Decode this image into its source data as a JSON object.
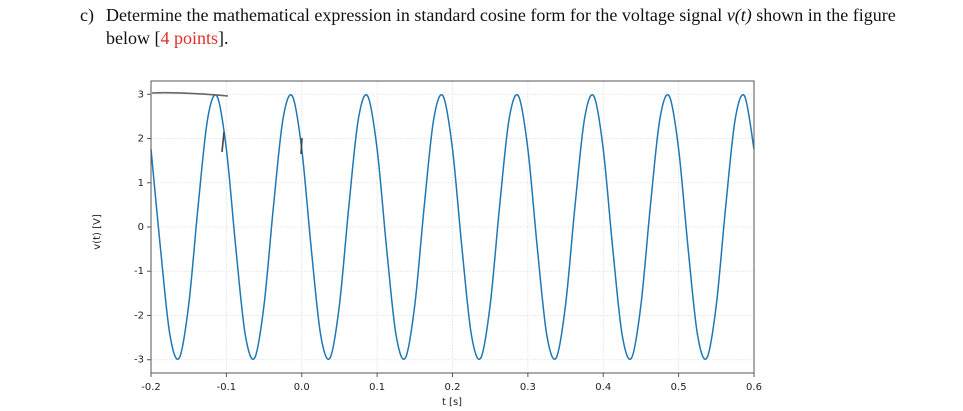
{
  "question": {
    "label": "c)",
    "text_before": "Determine the mathematical expression in standard cosine form for the voltage signal ",
    "math": "v(t)",
    "text_after": " shown in the figure below [",
    "points": "4 points",
    "text_end": "]."
  },
  "chart_data": {
    "type": "line",
    "xlabel": "t [s]",
    "ylabel": "v(t) [V]",
    "xlim": [
      -0.2,
      0.6
    ],
    "ylim": [
      -3.3,
      3.3
    ],
    "xticks": [
      -0.2,
      -0.1,
      {
        "value": 0,
        "label": "0.0"
      },
      0.1,
      0.2,
      0.3,
      0.4,
      0.5,
      0.6
    ],
    "yticks": [
      -3,
      -2,
      -1,
      0,
      1,
      2,
      3
    ],
    "grid": true,
    "series": [
      {
        "color": "#1f77b4",
        "x": [
          -0.2,
          -0.1875,
          -0.175,
          -0.1625,
          -0.15,
          -0.1375,
          -0.125,
          -0.1125,
          -0.1,
          -0.0875,
          -0.075,
          -0.0625,
          -0.05,
          -0.0375,
          -0.025,
          -0.0125,
          0,
          0.0125,
          0.025,
          0.0375,
          0.05,
          0.0625,
          0.075,
          0.0875,
          0.1,
          0.1125,
          0.125,
          0.1375,
          0.15,
          0.1625,
          0.175,
          0.1875,
          0.2,
          0.2125,
          0.225,
          0.2375,
          0.25,
          0.2625,
          0.275,
          0.2875,
          0.3,
          0.3125,
          0.325,
          0.3375,
          0.35,
          0.3625,
          0.375,
          0.3875,
          0.4,
          0.4125,
          0.425,
          0.4375,
          0.45,
          0.4625,
          0.475,
          0.4875,
          0.5,
          0.5125,
          0.525,
          0.5375,
          0.55,
          0.5625,
          0.575,
          0.5875,
          0.6
        ],
        "values": [
          1.76,
          -0.47,
          -2.43,
          -2.96,
          -1.76,
          0.47,
          2.43,
          2.96,
          1.76,
          -0.47,
          -2.43,
          -2.96,
          -1.76,
          0.47,
          2.43,
          2.96,
          1.76,
          -0.47,
          -2.43,
          -2.96,
          -1.76,
          0.47,
          2.43,
          2.96,
          1.76,
          -0.47,
          -2.43,
          -2.96,
          -1.76,
          0.47,
          2.43,
          2.96,
          1.76,
          -0.47,
          -2.43,
          -2.96,
          -1.76,
          0.47,
          2.43,
          2.96,
          1.76,
          -0.47,
          -2.43,
          -2.96,
          -1.76,
          0.47,
          2.43,
          2.96,
          1.76,
          -0.47,
          -2.43,
          -2.96,
          -1.76,
          0.47,
          2.43,
          2.96,
          1.76,
          -0.47,
          -2.43,
          -2.96,
          -1.76,
          0.47,
          2.43,
          2.96,
          1.76
        ]
      }
    ]
  }
}
